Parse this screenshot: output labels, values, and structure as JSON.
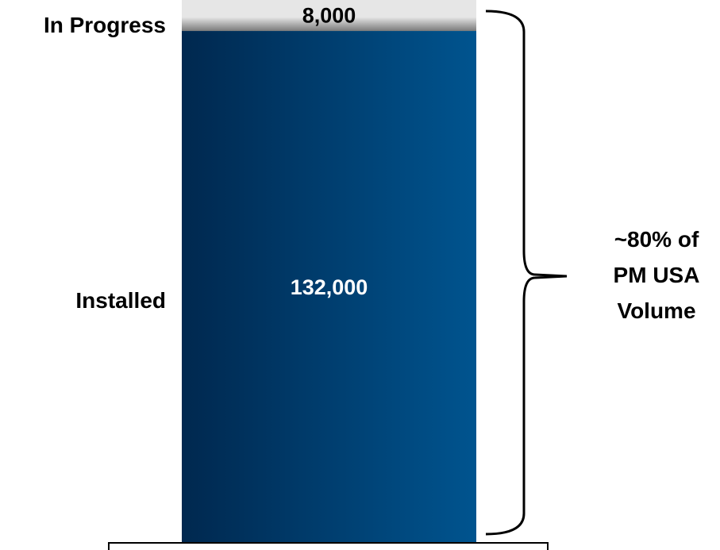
{
  "chart_data": {
    "type": "bar",
    "stacked": true,
    "categories": [
      ""
    ],
    "series": [
      {
        "name": "Installed",
        "values": [
          132000
        ],
        "value_label": "132,000",
        "color": "#004a80",
        "label_color": "#ffffff"
      },
      {
        "name": "In Progress",
        "values": [
          8000
        ],
        "value_label": "8,000",
        "color": "#c8c8c8",
        "label_color": "#000000"
      }
    ],
    "annotation": {
      "lines": [
        "~80% of",
        "PM USA",
        "Volume"
      ],
      "spans": [
        "Installed",
        "In Progress"
      ]
    },
    "grid": false,
    "legend": "none",
    "colors": {
      "installed_dark": "#00284f",
      "installed_light": "#00548f",
      "in_progress_light": "#e6e6e6",
      "in_progress_dark": "#7a7a7a"
    }
  }
}
